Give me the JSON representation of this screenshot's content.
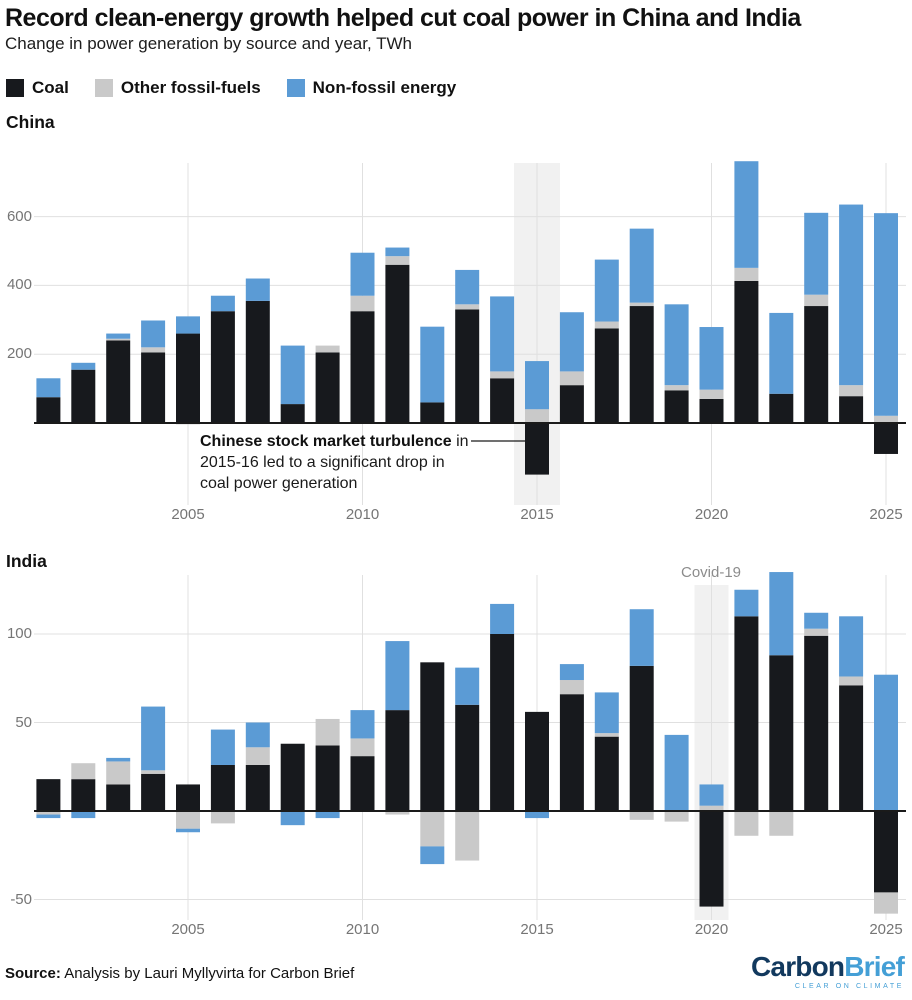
{
  "header": {
    "title": "Record clean-energy growth helped cut coal power in China and India",
    "subtitle": "Change in power generation by source and year, TWh"
  },
  "legend": {
    "items": [
      {
        "label": "Coal",
        "color": "#17191d"
      },
      {
        "label": "Other fossil-fuels",
        "color": "#c9c9c9"
      },
      {
        "label": "Non-fossil energy",
        "color": "#5b9bd5"
      }
    ]
  },
  "colors": {
    "coal": "#17191d",
    "other_fossil": "#c9c9c9",
    "non_fossil": "#5b9bd5",
    "gridline": "#e0e0e0",
    "axis_text": "#757575",
    "highlight_band": "#f1f1f1",
    "zero_line": "#1a1a1a"
  },
  "chart_data": [
    {
      "type": "bar",
      "stacked": true,
      "title": "China",
      "ylabel": "TWh",
      "grid": true,
      "legend_position": "top",
      "x": [
        2001,
        2002,
        2003,
        2004,
        2005,
        2006,
        2007,
        2008,
        2009,
        2010,
        2011,
        2012,
        2013,
        2014,
        2015,
        2016,
        2017,
        2018,
        2019,
        2020,
        2021,
        2022,
        2023,
        2024,
        2025
      ],
      "series": [
        {
          "name": "Coal",
          "color": "#17191d",
          "values": [
            75,
            155,
            240,
            205,
            260,
            325,
            355,
            55,
            205,
            325,
            460,
            60,
            330,
            130,
            -150,
            110,
            275,
            340,
            95,
            70,
            413,
            85,
            340,
            78,
            -90
          ]
        },
        {
          "name": "Other fossil-fuels",
          "color": "#c9c9c9",
          "values": [
            0,
            0,
            5,
            15,
            -4,
            0,
            0,
            -3,
            20,
            45,
            25,
            0,
            15,
            20,
            40,
            40,
            20,
            10,
            15,
            27,
            38,
            0,
            33,
            32,
            21
          ]
        },
        {
          "name": "Non-fossil energy",
          "color": "#5b9bd5",
          "values": [
            55,
            20,
            15,
            78,
            50,
            45,
            65,
            170,
            0,
            125,
            25,
            220,
            100,
            218,
            140,
            172,
            180,
            215,
            235,
            182,
            310,
            235,
            238,
            525,
            589
          ]
        }
      ],
      "xticks": [
        2005,
        2010,
        2015,
        2020,
        2025
      ],
      "yticks": [
        200,
        400,
        600
      ],
      "ylim": [
        -210,
        760
      ],
      "annotation": {
        "bold": "Chinese stock market turbulence",
        "rest": " in 2015-16 led to a significant drop in coal power generation",
        "highlight_year": 2015
      }
    },
    {
      "type": "bar",
      "stacked": true,
      "title": "India",
      "ylabel": "TWh",
      "grid": true,
      "legend_position": "top",
      "x": [
        2001,
        2002,
        2003,
        2004,
        2005,
        2006,
        2007,
        2008,
        2009,
        2010,
        2011,
        2012,
        2013,
        2014,
        2015,
        2016,
        2017,
        2018,
        2019,
        2020,
        2021,
        2022,
        2023,
        2024,
        2025
      ],
      "series": [
        {
          "name": "Coal",
          "color": "#17191d",
          "values": [
            18,
            18,
            15,
            21,
            15,
            26,
            26,
            38,
            37,
            31,
            57,
            84,
            60,
            100,
            56,
            66,
            42,
            82,
            0,
            -54,
            110,
            88,
            99,
            71,
            -46
          ]
        },
        {
          "name": "Other fossil-fuels",
          "color": "#c9c9c9",
          "values": [
            -2,
            9,
            13,
            2,
            -10,
            -7,
            10,
            0,
            15,
            10,
            -2,
            -20,
            -28,
            0,
            0,
            8,
            2,
            -5,
            -6,
            3,
            -14,
            -14,
            4,
            5,
            -12
          ]
        },
        {
          "name": "Non-fossil energy",
          "color": "#5b9bd5",
          "values": [
            -2,
            -4,
            2,
            36,
            -2,
            20,
            14,
            -8,
            -4,
            16,
            39,
            -10,
            21,
            17,
            -4,
            9,
            23,
            32,
            43,
            12,
            15,
            47,
            9,
            34,
            77
          ]
        }
      ],
      "xticks": [
        2005,
        2010,
        2015,
        2020,
        2025
      ],
      "yticks": [
        -50,
        50,
        100
      ],
      "ylim": [
        -65,
        135
      ],
      "annotation": {
        "label": "Covid-19",
        "highlight_year": 2020
      }
    }
  ],
  "footer": {
    "source_label": "Source:",
    "source_text": " Analysis by Lauri Myllyvirta for Carbon Brief",
    "logo": {
      "part1": "Carbon",
      "part2": "Brief",
      "tagline": "CLEAR ON CLIMATE"
    }
  }
}
